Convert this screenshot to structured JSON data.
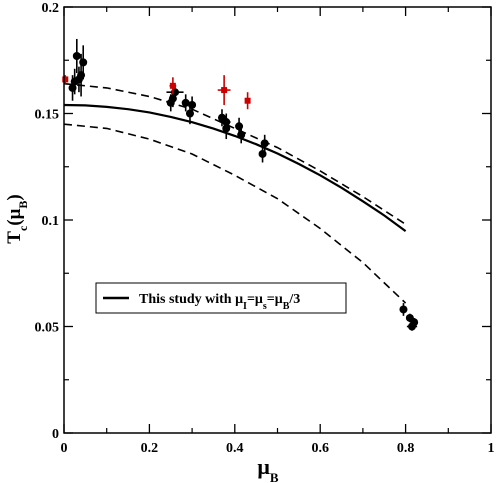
{
  "chart_data": {
    "type": "scatter",
    "xlabel": {
      "main": "μ",
      "sub": "B"
    },
    "ylabel": {
      "main": "T",
      "sub": "c",
      "paren_open": "(μ",
      "paren_sub": "B",
      "paren_close": ")"
    },
    "xlim": [
      0,
      1
    ],
    "ylim": [
      0,
      0.2
    ],
    "xticks": [
      0,
      0.2,
      0.4,
      0.6,
      0.8,
      1
    ],
    "yticks": [
      0,
      0.05,
      0.1,
      0.15,
      0.2
    ],
    "xtick_labels": [
      "0",
      "0.2",
      "0.4",
      "0.6",
      "0.8",
      "1"
    ],
    "ytick_labels": [
      "0",
      "0.05",
      "0.1",
      "0.15",
      "0.2"
    ],
    "grid": false,
    "legend": {
      "position": "left-center",
      "entries": [
        {
          "series": "model",
          "text_parts": [
            "This study with μ",
            "I",
            "=μ",
            "s",
            "=μ",
            "B",
            "/3"
          ]
        }
      ]
    },
    "series": [
      {
        "key": "model",
        "style": "solid",
        "color": "#000000",
        "x": [
          0.0,
          0.05,
          0.1,
          0.15,
          0.2,
          0.25,
          0.3,
          0.35,
          0.4,
          0.45,
          0.5,
          0.55,
          0.6,
          0.65,
          0.7,
          0.75,
          0.8
        ],
        "y": [
          0.154,
          0.1538,
          0.1531,
          0.152,
          0.1505,
          0.1484,
          0.1459,
          0.1429,
          0.1395,
          0.1356,
          0.1312,
          0.1263,
          0.121,
          0.1151,
          0.1088,
          0.1021,
          0.0948
        ]
      },
      {
        "key": "upper",
        "style": "dashed",
        "color": "#000000",
        "x": [
          0.0,
          0.1,
          0.2,
          0.3,
          0.4,
          0.5,
          0.6,
          0.7,
          0.8
        ],
        "y": [
          0.164,
          0.162,
          0.158,
          0.152,
          0.143,
          0.134,
          0.123,
          0.111,
          0.098
        ]
      },
      {
        "key": "lower",
        "style": "dashed",
        "color": "#000000",
        "x": [
          0.0,
          0.1,
          0.2,
          0.3,
          0.4,
          0.5,
          0.6,
          0.7,
          0.8
        ],
        "y": [
          0.145,
          0.143,
          0.138,
          0.131,
          0.121,
          0.11,
          0.096,
          0.08,
          0.061
        ]
      },
      {
        "key": "black_points",
        "style": "markers",
        "marker": "circle",
        "color": "#000000",
        "points": [
          {
            "x": 0.02,
            "y": 0.162,
            "xerr": 0.008,
            "yerr": 0.006
          },
          {
            "x": 0.025,
            "y": 0.165,
            "xerr": 0.0,
            "yerr": 0.006
          },
          {
            "x": 0.03,
            "y": 0.177,
            "xerr": 0.0,
            "yerr": 0.008
          },
          {
            "x": 0.035,
            "y": 0.166,
            "xerr": 0.008,
            "yerr": 0.006
          },
          {
            "x": 0.04,
            "y": 0.168,
            "xerr": 0.0,
            "yerr": 0.01
          },
          {
            "x": 0.045,
            "y": 0.174,
            "xerr": 0.0,
            "yerr": 0.008
          },
          {
            "x": 0.25,
            "y": 0.155,
            "xerr": 0.006,
            "yerr": 0.004
          },
          {
            "x": 0.255,
            "y": 0.157,
            "xerr": 0.0,
            "yerr": 0.004
          },
          {
            "x": 0.26,
            "y": 0.16,
            "xerr": 0.02,
            "yerr": 0.003
          },
          {
            "x": 0.285,
            "y": 0.155,
            "xerr": 0.008,
            "yerr": 0.004
          },
          {
            "x": 0.295,
            "y": 0.15,
            "xerr": 0.006,
            "yerr": 0.005
          },
          {
            "x": 0.3,
            "y": 0.154,
            "xerr": 0.0,
            "yerr": 0.004
          },
          {
            "x": 0.37,
            "y": 0.148,
            "xerr": 0.008,
            "yerr": 0.004
          },
          {
            "x": 0.38,
            "y": 0.146,
            "xerr": 0.01,
            "yerr": 0.004
          },
          {
            "x": 0.38,
            "y": 0.143,
            "xerr": 0.0,
            "yerr": 0.005
          },
          {
            "x": 0.41,
            "y": 0.144,
            "xerr": 0.006,
            "yerr": 0.004
          },
          {
            "x": 0.415,
            "y": 0.14,
            "xerr": 0.0,
            "yerr": 0.004
          },
          {
            "x": 0.465,
            "y": 0.131,
            "xerr": 0.008,
            "yerr": 0.004
          },
          {
            "x": 0.47,
            "y": 0.136,
            "xerr": 0.0,
            "yerr": 0.004
          },
          {
            "x": 0.795,
            "y": 0.058,
            "xerr": 0.0,
            "yerr": 0.003
          },
          {
            "x": 0.81,
            "y": 0.054,
            "xerr": 0.008,
            "yerr": 0.002
          },
          {
            "x": 0.815,
            "y": 0.05,
            "xerr": 0.012,
            "yerr": 0.002
          },
          {
            "x": 0.82,
            "y": 0.052,
            "xerr": 0.0,
            "yerr": 0.002
          }
        ]
      },
      {
        "key": "red_points",
        "style": "markers",
        "marker": "square",
        "color": "#cc0000",
        "points": [
          {
            "x": 0.003,
            "y": 0.166,
            "xerr": 0.005,
            "yerr": 0.002
          },
          {
            "x": 0.255,
            "y": 0.163,
            "xerr": 0.008,
            "yerr": 0.004
          },
          {
            "x": 0.375,
            "y": 0.161,
            "xerr": 0.015,
            "yerr": 0.007
          },
          {
            "x": 0.43,
            "y": 0.156,
            "xerr": 0.0,
            "yerr": 0.004
          }
        ]
      }
    ]
  }
}
